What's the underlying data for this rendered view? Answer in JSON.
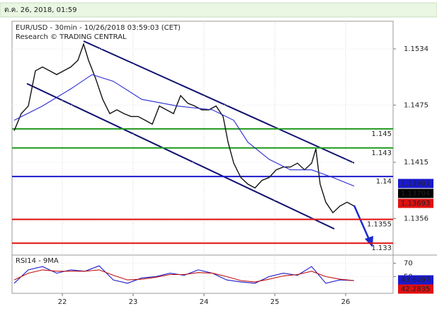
{
  "header": {
    "timestamp": "ต.ค. 26, 2018, 01:59"
  },
  "chart_data": [
    {
      "type": "line",
      "title": "EUR/USD - 30min - 10/26/2018 03:59:03 (CET)",
      "subtitle": "Research © TRADING CENTRAL",
      "xlim": [
        21.29,
        26.67
      ],
      "ylim": [
        1.1319,
        1.1563
      ],
      "yticks": [
        1.1534,
        1.1475,
        1.1415,
        1.1356
      ],
      "series": [
        {
          "color": "#111111",
          "x": [
            21.32,
            21.42,
            21.52,
            21.62,
            21.72,
            21.82,
            21.92,
            22.02,
            22.12,
            22.22,
            22.3,
            22.37,
            22.47,
            22.57,
            22.67,
            22.77,
            22.87,
            22.97,
            23.07,
            23.17,
            23.27,
            23.37,
            23.47,
            23.57,
            23.67,
            23.77,
            23.87,
            23.97,
            24.07,
            24.17,
            24.27,
            24.34,
            24.42,
            24.52,
            24.62,
            24.72,
            24.82,
            24.92,
            25.02,
            25.12,
            25.22,
            25.32,
            25.42,
            25.52,
            25.58,
            25.64,
            25.72,
            25.82,
            25.92,
            26.02,
            26.12
          ],
          "values": [
            1.1448,
            1.1466,
            1.1474,
            1.1511,
            1.1515,
            1.1511,
            1.1507,
            1.1511,
            1.1515,
            1.1522,
            1.1539,
            1.1522,
            1.1503,
            1.1481,
            1.1466,
            1.147,
            1.1466,
            1.1463,
            1.1463,
            1.1459,
            1.1455,
            1.1474,
            1.147,
            1.1466,
            1.1485,
            1.1477,
            1.1474,
            1.147,
            1.147,
            1.1474,
            1.1463,
            1.1436,
            1.1414,
            1.1399,
            1.1392,
            1.1388,
            1.1396,
            1.1399,
            1.1407,
            1.141,
            1.141,
            1.1414,
            1.1407,
            1.1414,
            1.1429,
            1.1392,
            1.1373,
            1.1362,
            1.1369,
            1.1373,
            1.1369
          ]
        },
        {
          "color": "#2b2bd0",
          "x": [
            21.32,
            21.72,
            22.12,
            22.42,
            22.72,
            23.12,
            23.62,
            24.12,
            24.42,
            24.62,
            24.92,
            25.22,
            25.52,
            25.82,
            26.12
          ],
          "values": [
            1.1459,
            1.1474,
            1.1492,
            1.1507,
            1.15,
            1.1481,
            1.1474,
            1.147,
            1.1459,
            1.1436,
            1.1418,
            1.1407,
            1.1407,
            1.1399,
            1.139
          ]
        }
      ],
      "levels": [
        {
          "value": 1.145,
          "color": "#1f9a1f"
        },
        {
          "value": 1.143,
          "color": "#1f9a1f"
        },
        {
          "value": 1.14,
          "color": "#1a1acc"
        },
        {
          "value": 1.1355,
          "color": "#e01010"
        },
        {
          "value": 1.133,
          "color": "#e01010"
        }
      ],
      "price_tags": [
        {
          "value": 1.13901,
          "color": "#1a1acc"
        },
        {
          "value": 1.13704,
          "color": "#000000"
        },
        {
          "value": 1.13693,
          "color": "#e01010"
        }
      ]
    },
    {
      "type": "line",
      "title": "RSI14 - 9MA",
      "xlim": [
        21.29,
        26.67
      ],
      "xticks": [
        22,
        23,
        24,
        25,
        26
      ],
      "ylim": [
        25,
        80
      ],
      "yticks": [
        70,
        50
      ],
      "series": [
        {
          "color": "#1a1acc",
          "x": [
            21.32,
            21.52,
            21.72,
            21.92,
            22.12,
            22.32,
            22.52,
            22.72,
            22.92,
            23.12,
            23.32,
            23.52,
            23.72,
            23.92,
            24.12,
            24.32,
            24.52,
            24.72,
            24.92,
            25.12,
            25.32,
            25.52,
            25.72,
            25.92,
            26.12
          ],
          "values": [
            40,
            60,
            65,
            55,
            60,
            58,
            66,
            45,
            40,
            48,
            50,
            55,
            52,
            60,
            55,
            45,
            42,
            40,
            50,
            55,
            52,
            65,
            40,
            45,
            44
          ]
        },
        {
          "color": "#c01010",
          "x": [
            21.32,
            21.52,
            21.72,
            21.92,
            22.12,
            22.32,
            22.52,
            22.72,
            22.92,
            23.12,
            23.32,
            23.52,
            23.72,
            23.92,
            24.12,
            24.32,
            24.52,
            24.72,
            24.92,
            25.12,
            25.32,
            25.52,
            25.72,
            25.92,
            26.12
          ],
          "values": [
            45,
            55,
            60,
            58,
            58,
            58,
            60,
            52,
            45,
            46,
            49,
            53,
            53,
            56,
            55,
            50,
            44,
            42,
            46,
            51,
            53,
            58,
            50,
            46,
            44
          ]
        }
      ],
      "price_tags": [
        {
          "value": 43.6097,
          "color": "#1a1acc"
        },
        {
          "value": 42.2835,
          "color": "#e01010"
        }
      ]
    }
  ]
}
